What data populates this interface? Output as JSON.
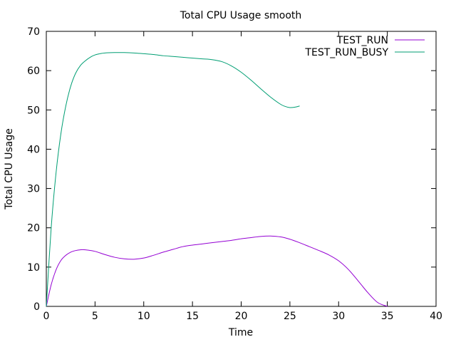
{
  "chart_data": {
    "type": "line",
    "title": "Total CPU Usage smooth",
    "xlabel": "Time",
    "ylabel": "Total CPU Usage",
    "xlim": [
      0,
      40
    ],
    "ylim": [
      0,
      70
    ],
    "xticks": [
      0,
      5,
      10,
      15,
      20,
      25,
      30,
      35,
      40
    ],
    "yticks": [
      0,
      10,
      20,
      30,
      40,
      50,
      60,
      70
    ],
    "grid": false,
    "legend_position": "top-right",
    "series": [
      {
        "name": "TEST_RUN",
        "color": "#9400d3",
        "x": [
          0,
          0.5,
          1,
          1.5,
          2,
          2.5,
          3,
          3.5,
          4,
          5,
          6,
          7,
          8,
          9,
          10,
          11,
          12,
          13,
          14,
          15,
          16,
          17,
          18,
          19,
          20,
          21,
          22,
          23,
          24,
          25,
          26,
          27,
          28,
          29,
          30,
          31,
          32,
          33,
          34,
          35
        ],
        "y": [
          0,
          5.5,
          9.3,
          11.7,
          13.0,
          13.8,
          14.2,
          14.4,
          14.4,
          14.0,
          13.2,
          12.5,
          12.1,
          12.0,
          12.3,
          13.0,
          13.8,
          14.5,
          15.2,
          15.6,
          15.9,
          16.2,
          16.5,
          16.8,
          17.2,
          17.5,
          17.8,
          17.9,
          17.7,
          17.1,
          16.2,
          15.2,
          14.2,
          13.1,
          11.6,
          9.4,
          6.5,
          3.5,
          1.0,
          0.0
        ]
      },
      {
        "name": "TEST_RUN_BUSY",
        "color": "#009e73",
        "x": [
          0,
          0.5,
          1,
          1.5,
          2,
          2.5,
          3,
          3.5,
          4,
          4.5,
          5,
          5.5,
          6,
          7,
          8,
          9,
          10,
          11,
          12,
          13,
          14,
          15,
          16,
          17,
          18,
          19,
          20,
          21,
          22,
          23,
          24,
          24.5,
          25,
          25.5,
          26
        ],
        "y": [
          0,
          20,
          34,
          44,
          51,
          56,
          59.3,
          61.3,
          62.5,
          63.4,
          64.0,
          64.3,
          64.5,
          64.6,
          64.6,
          64.5,
          64.3,
          64.1,
          63.8,
          63.6,
          63.4,
          63.2,
          63.0,
          62.8,
          62.3,
          61.2,
          59.6,
          57.6,
          55.4,
          53.3,
          51.5,
          50.9,
          50.6,
          50.7,
          51.0
        ]
      }
    ]
  }
}
